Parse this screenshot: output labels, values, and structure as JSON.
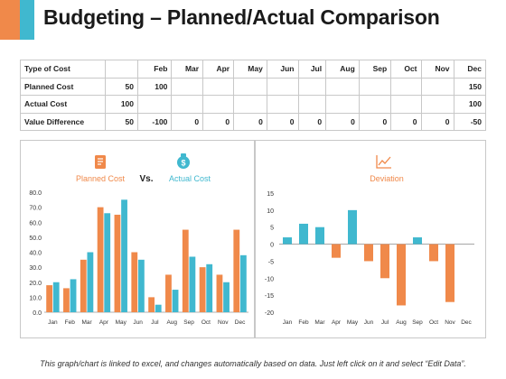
{
  "title": "Budgeting – Planned/Actual Comparison",
  "colors": {
    "planned": "#f0894a",
    "actual": "#40b8cf",
    "accent_orange": "#f0894a",
    "accent_teal": "#40b8cf"
  },
  "table": {
    "headers": [
      "Type of Cost",
      "",
      "Feb",
      "Mar",
      "Apr",
      "May",
      "Jun",
      "Jul",
      "Aug",
      "Sep",
      "Oct",
      "Nov",
      "Dec"
    ],
    "rows": [
      [
        "Planned Cost",
        "50",
        "100",
        "",
        "",
        "",
        "",
        "",
        "",
        "",
        "",
        "",
        "150"
      ],
      [
        "Actual Cost",
        "100",
        "",
        "",
        "",
        "",
        "",
        "",
        "",
        "",
        "",
        "",
        "100"
      ],
      [
        "Value Difference",
        "50",
        "-100",
        "0",
        "0",
        "0",
        "0",
        "0",
        "0",
        "0",
        "0",
        "0",
        "-50"
      ]
    ]
  },
  "left_chart": {
    "legend_planned": "Planned Cost",
    "legend_vs": "Vs.",
    "legend_actual": "Actual Cost",
    "planned_icon": "document-dollar-icon",
    "actual_icon": "money-bag-icon"
  },
  "right_chart": {
    "legend_deviation": "Deviation",
    "deviation_icon": "line-chart-icon"
  },
  "chart_data": [
    {
      "type": "bar",
      "categories": [
        "Jan",
        "Feb",
        "Mar",
        "Apr",
        "May",
        "Jun",
        "Jul",
        "Aug",
        "Sep",
        "Oct",
        "Nov",
        "Dec"
      ],
      "series": [
        {
          "name": "Planned Cost",
          "values": [
            18,
            16,
            35,
            70,
            65,
            40,
            10,
            25,
            55,
            30,
            25,
            55
          ]
        },
        {
          "name": "Actual Cost",
          "values": [
            20,
            22,
            40,
            66,
            75,
            35,
            5,
            15,
            37,
            32,
            20,
            38
          ]
        }
      ],
      "ylim": [
        0,
        80
      ],
      "yticks": [
        "0.0",
        "10.0",
        "20.0",
        "30.0",
        "40.0",
        "50.0",
        "60.0",
        "70.0",
        "80.0"
      ],
      "grid": false,
      "legend": "top"
    },
    {
      "type": "bar",
      "categories": [
        "Jan",
        "Feb",
        "Mar",
        "Apr",
        "May",
        "Jun",
        "Jul",
        "Aug",
        "Sep",
        "Oct",
        "Nov",
        "Dec"
      ],
      "series": [
        {
          "name": "Deviation",
          "values": [
            2,
            6,
            5,
            -4,
            10,
            -5,
            -10,
            -18,
            2,
            -5,
            -17,
            null
          ]
        }
      ],
      "ylim": [
        -20,
        15
      ],
      "yticks": [
        "-20",
        "-15",
        "-10",
        "-5",
        "0",
        "5",
        "10",
        "15"
      ],
      "grid": false,
      "legend": "top"
    }
  ],
  "footnote": "This graph/chart is linked to excel, and changes automatically based on data. Just left click on it and select “Edit Data”."
}
